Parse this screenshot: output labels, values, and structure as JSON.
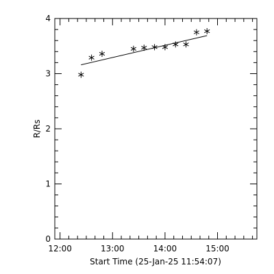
{
  "chart_data": {
    "type": "scatter",
    "title": "",
    "xlabel": "Start Time (25-Jan-25 11:54:07)",
    "ylabel": "R/Rs",
    "x_is_time": true,
    "xlim": [
      "11:54",
      "15:45"
    ],
    "ylim": [
      0,
      4
    ],
    "x_ticks": [
      "12:00",
      "13:00",
      "14:00",
      "15:00"
    ],
    "y_ticks": [
      0,
      1,
      2,
      3,
      4
    ],
    "grid": false,
    "points": [
      {
        "x": "12:24",
        "y": 2.98
      },
      {
        "x": "12:36",
        "y": 3.29
      },
      {
        "x": "12:48",
        "y": 3.36
      },
      {
        "x": "13:24",
        "y": 3.45
      },
      {
        "x": "13:36",
        "y": 3.47
      },
      {
        "x": "13:48",
        "y": 3.48
      },
      {
        "x": "14:00",
        "y": 3.48
      },
      {
        "x": "14:12",
        "y": 3.53
      },
      {
        "x": "14:24",
        "y": 3.53
      },
      {
        "x": "14:36",
        "y": 3.75
      },
      {
        "x": "14:48",
        "y": 3.77
      }
    ],
    "fit_line": [
      {
        "x": "12:24",
        "y": 3.16
      },
      {
        "x": "14:48",
        "y": 3.69
      }
    ],
    "marker": "asterisk",
    "color": "#000000"
  }
}
